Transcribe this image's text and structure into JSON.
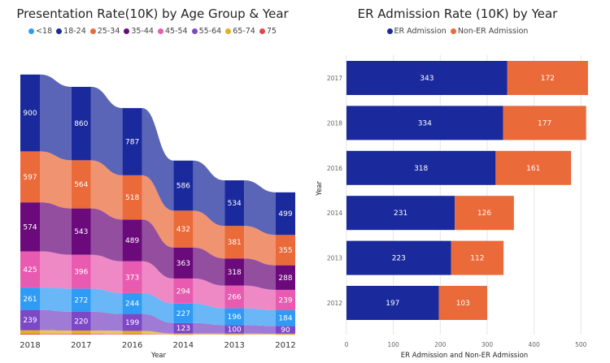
{
  "chart_data": [
    {
      "type": "area",
      "subtype": "ribbon-stacked",
      "title": "Presentation Rate(10K) by Age Group & Year",
      "xlabel": "Year",
      "ylabel": "",
      "categories": [
        "2018",
        "2017",
        "2016",
        "2014",
        "2013",
        "2012"
      ],
      "series": [
        {
          "name": "<18",
          "color": "#2f9bf4",
          "values": [
            261,
            272,
            244,
            227,
            196,
            184
          ]
        },
        {
          "name": "18-24",
          "color": "#1a2a9c",
          "values": [
            900,
            860,
            787,
            586,
            534,
            499
          ]
        },
        {
          "name": "25-34",
          "color": "#ea6a3a",
          "values": [
            597,
            564,
            518,
            432,
            381,
            355
          ]
        },
        {
          "name": "35-44",
          "color": "#6b0a7a",
          "values": [
            574,
            543,
            489,
            363,
            318,
            288
          ]
        },
        {
          "name": "45-54",
          "color": "#e85bb0",
          "values": [
            425,
            396,
            373,
            294,
            266,
            239
          ]
        },
        {
          "name": "55-64",
          "color": "#7c48c6",
          "values": [
            239,
            220,
            199,
            123,
            100,
            90
          ]
        },
        {
          "name": "65-74",
          "color": "#e3b21a",
          "values": [
            40,
            38,
            35,
            10,
            9,
            8
          ]
        },
        {
          "name": "75",
          "color": "#e0484c",
          "values": [
            10,
            9,
            8,
            3,
            3,
            3
          ]
        }
      ],
      "stack_order_bottom_to_top": [
        "75",
        "65-74",
        "55-64",
        "<18",
        "45-54",
        "35-44",
        "25-34",
        "18-24"
      ],
      "labeled_series": [
        "18-24",
        "25-34",
        "35-44",
        "45-54",
        "<18",
        "55-64"
      ]
    },
    {
      "type": "bar",
      "orientation": "horizontal",
      "stacked": true,
      "title": "ER Admission Rate (10K) by Year",
      "xlabel": "ER Admission and Non-ER Admission",
      "ylabel": "Year",
      "categories": [
        "2017",
        "2018",
        "2016",
        "2014",
        "2013",
        "2012"
      ],
      "series": [
        {
          "name": "ER Admission",
          "color": "#1a2a9c",
          "values": [
            343,
            334,
            318,
            231,
            223,
            197
          ]
        },
        {
          "name": "Non-ER Admission",
          "color": "#ea6a3a",
          "values": [
            172,
            177,
            161,
            126,
            112,
            103
          ]
        }
      ],
      "xlim": [
        0,
        520
      ],
      "xticks": [
        0,
        100,
        200,
        300,
        400,
        500
      ]
    }
  ]
}
